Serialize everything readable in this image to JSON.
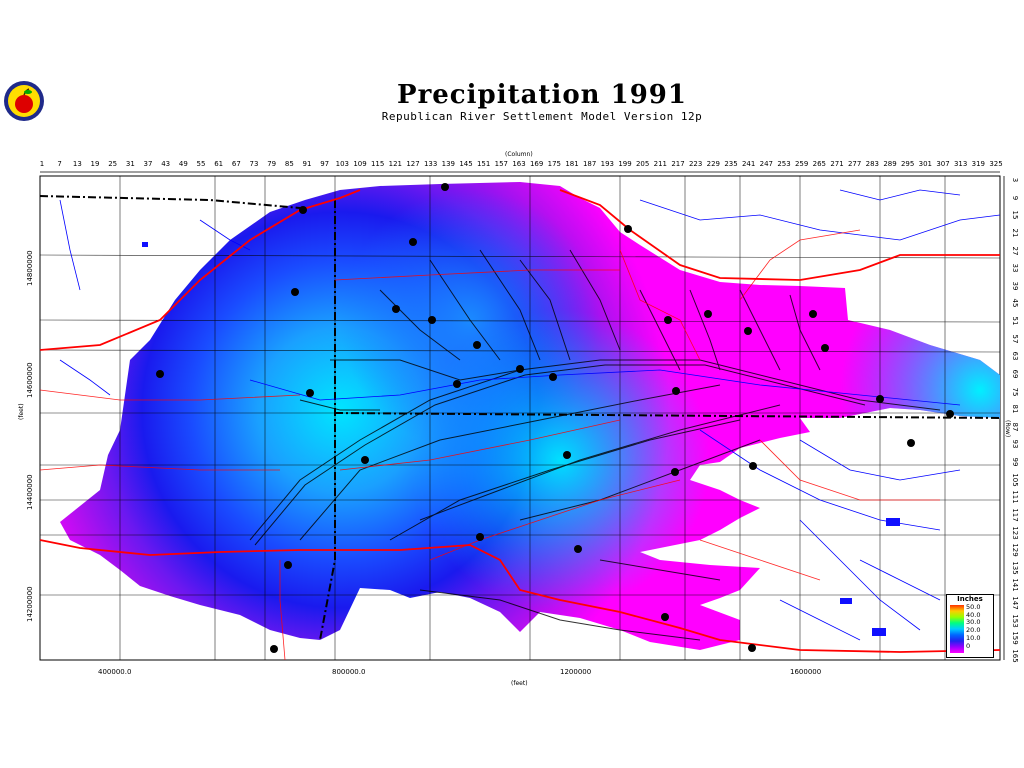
{
  "title": "Precipitation 1991",
  "subtitle": "Republican River Settlement Model Version 12p",
  "axes": {
    "top_label": "(Column)",
    "right_label": "(Row)",
    "left_label": "(feet)",
    "bottom_label": "(feet)",
    "column_ticks": [
      "1",
      "7",
      "13",
      "19",
      "25",
      "31",
      "37",
      "43",
      "49",
      "55",
      "61",
      "67",
      "73",
      "79",
      "85",
      "91",
      "97",
      "103",
      "109",
      "115",
      "121",
      "127",
      "133",
      "139",
      "145",
      "151",
      "157",
      "163",
      "169",
      "175",
      "181",
      "187",
      "193",
      "199",
      "205",
      "211",
      "217",
      "223",
      "229",
      "235",
      "241",
      "247",
      "253",
      "259",
      "265",
      "271",
      "277",
      "283",
      "289",
      "295",
      "301",
      "307",
      "313",
      "319",
      "325"
    ],
    "row_ticks": [
      "3",
      "9",
      "15",
      "21",
      "27",
      "33",
      "39",
      "45",
      "51",
      "57",
      "63",
      "69",
      "75",
      "81",
      "87",
      "93",
      "99",
      "105",
      "111",
      "117",
      "123",
      "129",
      "135",
      "141",
      "147",
      "153",
      "159",
      "165"
    ],
    "x_ticks": [
      "400000.0",
      "800000.0",
      "1200000",
      "1600000"
    ],
    "y_ticks": [
      "14800000",
      "14600000",
      "14400000",
      "14200000"
    ]
  },
  "legend": {
    "title": "Inches",
    "labels": [
      "50.0",
      "40.0",
      "30.0",
      "20.0",
      "10.0",
      "0"
    ],
    "colors": [
      "#ff3000",
      "#ffcc00",
      "#99ff00",
      "#00ccff",
      "#2222ee",
      "#9900ff",
      "#ff00ff"
    ]
  },
  "logo": {
    "icon": "apple-seal-icon"
  },
  "colors": {
    "low_precip": "#ff00ff",
    "mid_precip": "#1a1aee",
    "high_precip": "#00e5ff",
    "roads": "#ff0000",
    "rivers": "#0000ff"
  }
}
